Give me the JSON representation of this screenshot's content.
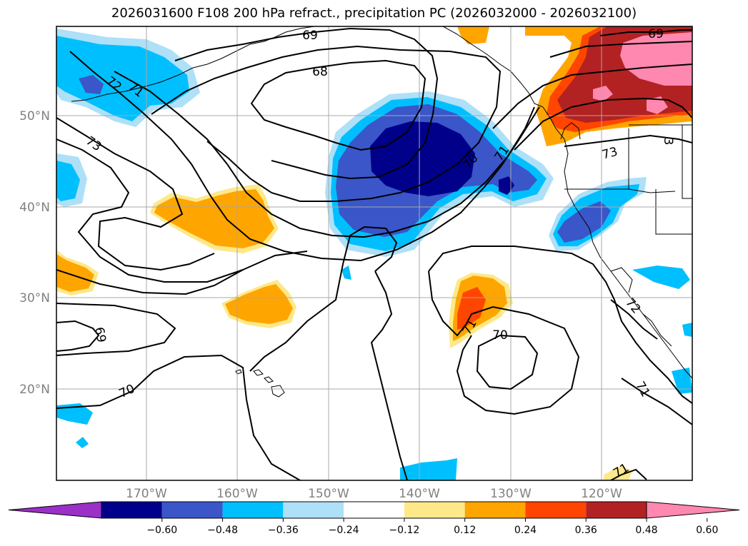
{
  "title": "2026031600 F108 200 hPa refract., precipitation PC (2026032000 - 2026032100)",
  "lat_labels": [
    "50°N",
    "40°N",
    "30°N",
    "20°N"
  ],
  "lon_labels": [
    "170°W",
    "160°W",
    "150°W",
    "140°W",
    "130°W",
    "120°W"
  ],
  "colorbar": {
    "ticks": [
      "−0.60",
      "−0.48",
      "−0.36",
      "−0.24",
      "−0.12",
      "0.12",
      "0.24",
      "0.36",
      "0.48",
      "0.60"
    ],
    "colors": [
      "#9b30c8",
      "#00008b",
      "#3a56c8",
      "#00bfff",
      "#aee0f8",
      "#ffffff",
      "#fde98a",
      "#ffa500",
      "#ff4500",
      "#b22222",
      "#ff88b0"
    ]
  },
  "contour_labels": [
    {
      "text": "69",
      "id": "c69-top"
    },
    {
      "text": "68",
      "id": "c68"
    },
    {
      "text": "72",
      "id": "c72-nw"
    },
    {
      "text": "71",
      "id": "c71-nw"
    },
    {
      "text": "73",
      "id": "c73-w"
    },
    {
      "text": "70",
      "id": "c70-mid"
    },
    {
      "text": "71",
      "id": "c71-mid"
    },
    {
      "text": "69",
      "id": "c69-ne"
    },
    {
      "text": "73",
      "id": "c73-e"
    },
    {
      "text": "3",
      "id": "c3-e"
    },
    {
      "text": "69",
      "id": "c69-sw"
    },
    {
      "text": "70",
      "id": "c70-sw"
    },
    {
      "text": "71",
      "id": "c71-s"
    },
    {
      "text": "70",
      "id": "c70-s"
    },
    {
      "text": "72",
      "id": "c72-se"
    },
    {
      "text": "71",
      "id": "c71-se"
    },
    {
      "text": "71",
      "id": "c71-bottom"
    }
  ]
}
